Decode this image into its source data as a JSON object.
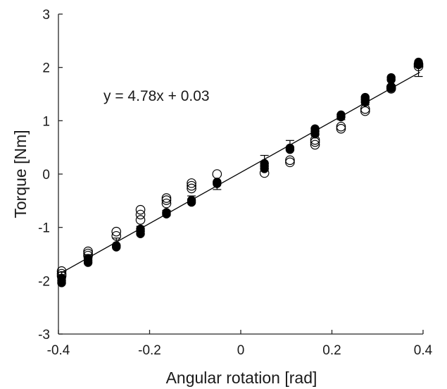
{
  "chart_data": {
    "type": "scatter",
    "title": "",
    "xlabel": "Angular rotation [rad]",
    "ylabel": "Torque [Nm]",
    "xlim": [
      -0.4,
      0.4
    ],
    "ylim": [
      -3,
      3
    ],
    "xticks": [
      -0.4,
      -0.2,
      0,
      0.2,
      0.4
    ],
    "xtick_labels": [
      "-0.4",
      "-0.2",
      "0",
      "0.2",
      "0.4"
    ],
    "yticks": [
      -3,
      -2,
      -1,
      0,
      1,
      2,
      3
    ],
    "ytick_labels": [
      "-3",
      "-2",
      "-1",
      "0",
      "1",
      "2",
      "3"
    ],
    "grid": false,
    "annotation": "y = 4.78x + 0.03",
    "fit_line": {
      "slope": 4.78,
      "intercept": 0.03
    },
    "series": [
      {
        "style": "open-circle",
        "points": [
          [
            -0.393,
            -1.82
          ],
          [
            -0.393,
            -1.87
          ],
          [
            -0.393,
            -1.91
          ],
          [
            -0.335,
            -1.45
          ],
          [
            -0.335,
            -1.49
          ],
          [
            -0.335,
            -1.53
          ],
          [
            -0.273,
            -1.08
          ],
          [
            -0.273,
            -1.16
          ],
          [
            -0.22,
            -0.67
          ],
          [
            -0.22,
            -0.76
          ],
          [
            -0.22,
            -0.86
          ],
          [
            -0.163,
            -0.45
          ],
          [
            -0.163,
            -0.49
          ],
          [
            -0.163,
            -0.55
          ],
          [
            -0.108,
            -0.17
          ],
          [
            -0.108,
            -0.22
          ],
          [
            -0.108,
            -0.27
          ],
          [
            -0.052,
            0.0
          ],
          [
            0.052,
            0.02
          ],
          [
            0.108,
            0.22
          ],
          [
            0.108,
            0.26
          ],
          [
            0.163,
            0.55
          ],
          [
            0.163,
            0.6
          ],
          [
            0.163,
            0.64
          ],
          [
            0.22,
            0.85
          ],
          [
            0.22,
            0.89
          ],
          [
            0.273,
            1.18
          ],
          [
            0.273,
            1.22
          ],
          [
            0.33,
            1.6
          ],
          [
            0.33,
            1.63
          ],
          [
            0.39,
            2.02
          ],
          [
            0.39,
            2.06
          ]
        ]
      },
      {
        "style": "filled-circle",
        "points": [
          [
            -0.393,
            -1.95
          ],
          [
            -0.393,
            -2.0
          ],
          [
            -0.393,
            -2.04
          ],
          [
            -0.335,
            -1.58
          ],
          [
            -0.335,
            -1.62
          ],
          [
            -0.335,
            -1.66
          ],
          [
            -0.273,
            -1.34
          ],
          [
            -0.273,
            -1.37
          ],
          [
            -0.22,
            -1.03
          ],
          [
            -0.22,
            -1.07
          ],
          [
            -0.22,
            -1.12
          ],
          [
            -0.163,
            -0.72
          ],
          [
            -0.163,
            -0.75
          ],
          [
            -0.108,
            -0.49
          ],
          [
            -0.108,
            -0.53
          ],
          [
            -0.052,
            -0.15
          ],
          [
            -0.052,
            -0.18
          ],
          [
            0.052,
            0.1
          ],
          [
            0.052,
            0.15
          ],
          [
            0.052,
            0.2
          ],
          [
            0.108,
            0.46
          ],
          [
            0.108,
            0.49
          ],
          [
            0.163,
            0.75
          ],
          [
            0.163,
            0.8
          ],
          [
            0.163,
            0.85
          ],
          [
            0.22,
            1.07
          ],
          [
            0.22,
            1.11
          ],
          [
            0.273,
            1.35
          ],
          [
            0.273,
            1.4
          ],
          [
            0.273,
            1.44
          ],
          [
            0.33,
            1.61
          ],
          [
            0.33,
            1.64
          ],
          [
            0.33,
            1.77
          ],
          [
            0.33,
            1.81
          ],
          [
            0.39,
            2.05
          ],
          [
            0.39,
            2.1
          ]
        ]
      }
    ],
    "error_bars": [
      {
        "x": -0.393,
        "y": -1.91,
        "err": 0.07
      },
      {
        "x": -0.335,
        "y": -1.58,
        "err": 0.07
      },
      {
        "x": -0.273,
        "y": -1.27,
        "err": 0.07
      },
      {
        "x": -0.22,
        "y": -1.03,
        "err": 0.05
      },
      {
        "x": -0.163,
        "y": -0.73,
        "err": 0.05
      },
      {
        "x": -0.108,
        "y": -0.46,
        "err": 0.05
      },
      {
        "x": -0.052,
        "y": -0.22,
        "err": 0.07
      },
      {
        "x": 0.052,
        "y": 0.27,
        "err": 0.08
      },
      {
        "x": 0.108,
        "y": 0.55,
        "err": 0.08
      },
      {
        "x": 0.163,
        "y": 0.78,
        "err": 0.05
      },
      {
        "x": 0.22,
        "y": 1.07,
        "err": 0.05
      },
      {
        "x": 0.273,
        "y": 1.35,
        "err": 0.05
      },
      {
        "x": 0.33,
        "y": 1.62,
        "err": 0.05
      },
      {
        "x": 0.39,
        "y": 1.92,
        "err": 0.09
      }
    ]
  }
}
